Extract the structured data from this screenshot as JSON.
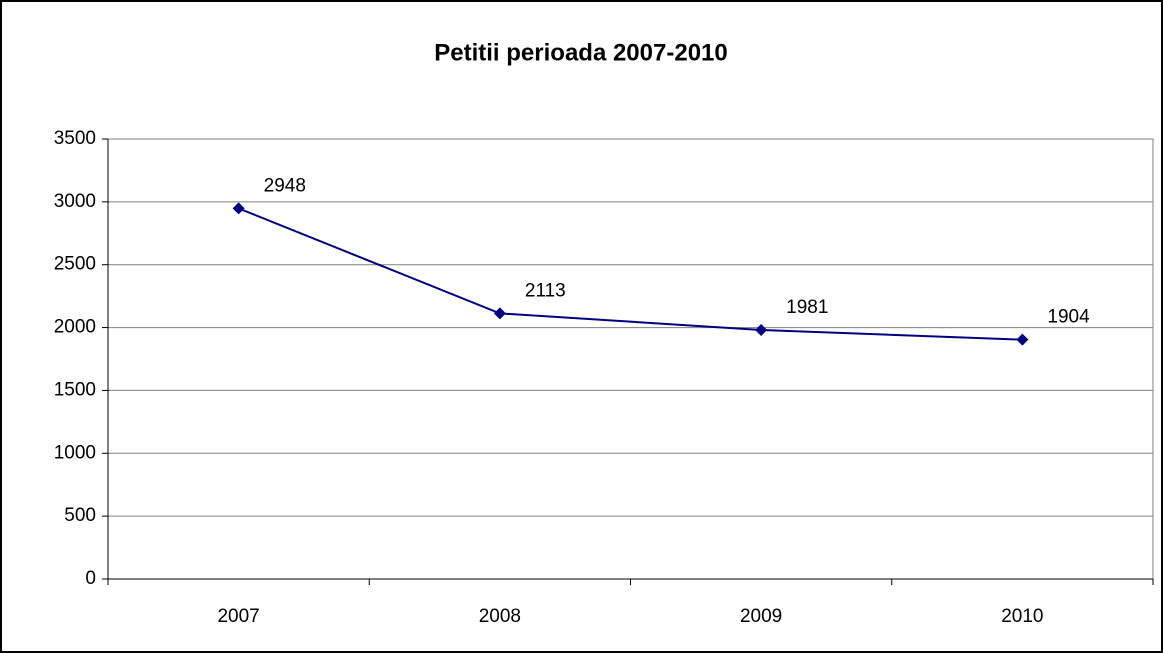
{
  "chart_data": {
    "type": "line",
    "title": "Petitii perioada 2007-2010",
    "categories": [
      "2007",
      "2008",
      "2009",
      "2010"
    ],
    "values": [
      2948,
      2113,
      1981,
      1904
    ],
    "color": "#000080",
    "ylim": [
      0,
      3500
    ],
    "yticks": [
      0,
      500,
      1000,
      1500,
      2000,
      2500,
      3000,
      3500
    ],
    "grid": true
  }
}
